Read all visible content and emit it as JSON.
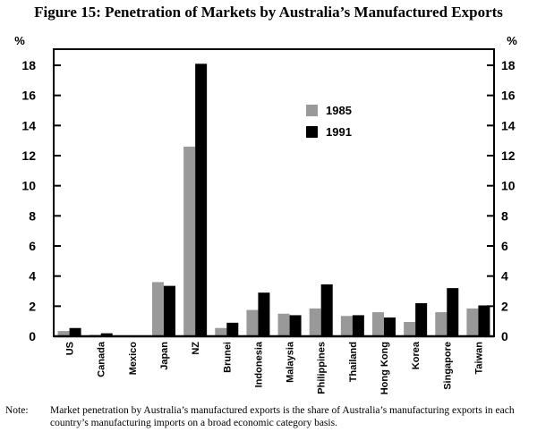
{
  "chart_data": {
    "type": "bar",
    "title": "Figure 15: Penetration of Markets by Australia’s Manufactured Exports",
    "ylabel_left": "%",
    "ylabel_right": "%",
    "ylim": [
      0,
      18
    ],
    "yticks": [
      0,
      2,
      4,
      6,
      8,
      10,
      12,
      14,
      16,
      18
    ],
    "categories": [
      "US",
      "Canada",
      "Mexico",
      "Japan",
      "NZ",
      "Brunei",
      "Indonesia",
      "Malaysia",
      "Philippines",
      "Thailand",
      "Hong Kong",
      "Korea",
      "Singapore",
      "Taiwan"
    ],
    "series": [
      {
        "name": "1985",
        "color": "#999999",
        "values": [
          0.35,
          0.1,
          0,
          3.6,
          12.6,
          0.55,
          1.75,
          1.5,
          1.85,
          1.35,
          1.6,
          0.95,
          1.6,
          1.85
        ]
      },
      {
        "name": "1991",
        "color": "#000000",
        "values": [
          0.55,
          0.2,
          0,
          3.35,
          18.1,
          0.9,
          2.9,
          1.4,
          3.45,
          1.4,
          1.25,
          2.2,
          3.2,
          2.05
        ]
      }
    ],
    "legend": "top-right-center"
  },
  "note": {
    "label": "Note:",
    "text": "Market penetration by Australia’s manufactured exports is the share of Australia’s manufacturing exports in each country’s manufacturing imports on a broad economic category basis."
  }
}
